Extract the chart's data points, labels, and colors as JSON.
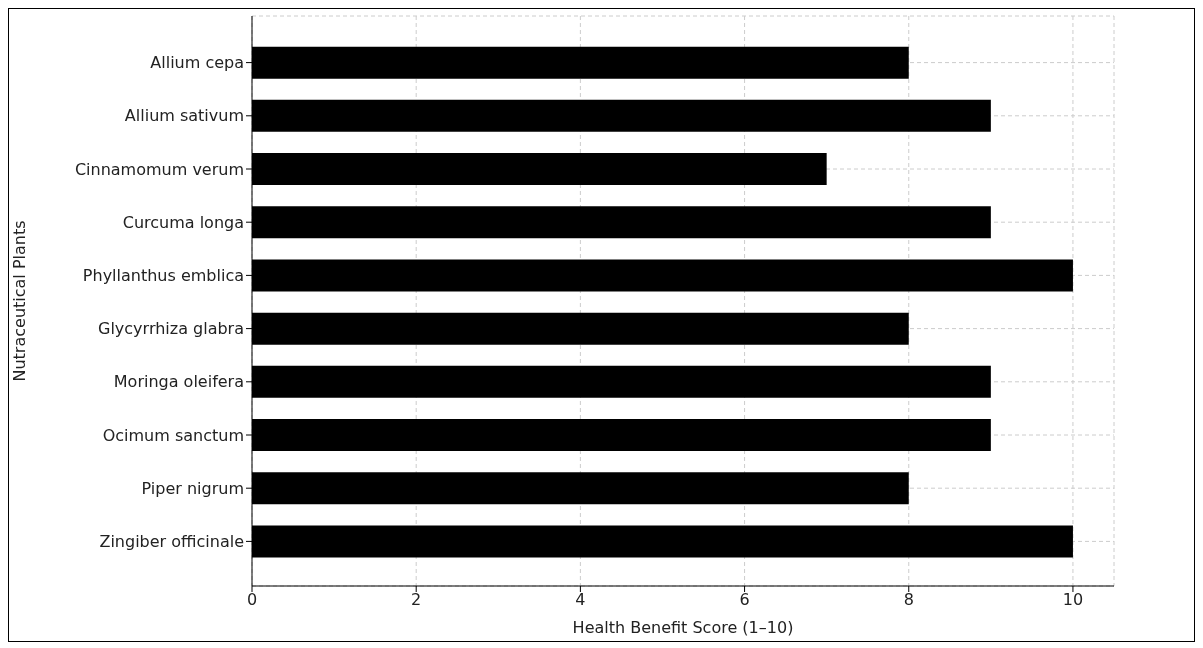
{
  "chart_data": {
    "type": "bar",
    "orientation": "horizontal",
    "xlabel": "Health Benefit Score (1–10)",
    "ylabel": "Nutraceutical Plants",
    "categories": [
      "Allium cepa",
      "Allium sativum",
      "Cinnamomum verum",
      "Curcuma longa",
      "Phyllanthus emblica",
      "Glycyrrhiza glabra",
      "Moringa oleifera",
      "Ocimum sanctum",
      "Piper nigrum",
      "Zingiber officinale"
    ],
    "values": [
      8,
      9,
      7,
      9,
      10,
      8,
      9,
      9,
      8,
      10
    ],
    "color": "#000000",
    "xlim": [
      0,
      10.5
    ],
    "xticks": [
      0,
      2,
      4,
      6,
      8,
      10
    ],
    "grid": true
  }
}
